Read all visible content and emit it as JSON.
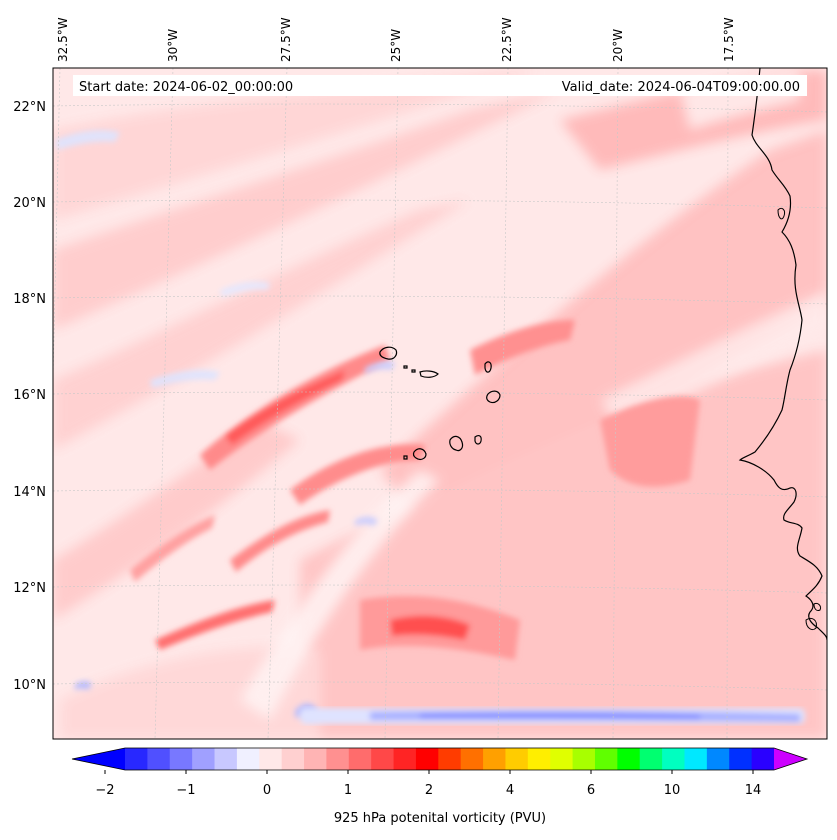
{
  "map": {
    "start_date_label": "Start date: 2024-06-02_00:00:00",
    "valid_date_label": "Valid_date: 2024-06-04T09:00:00.00",
    "top_longitude_labels": [
      "32.5°W",
      "30°W",
      "27.5°W",
      "25°W",
      "22.5°W",
      "20°W",
      "17.5°W"
    ],
    "left_latitude_labels": [
      "22°N",
      "20°N",
      "18°N",
      "16°N",
      "14°N",
      "12°N",
      "10°N"
    ],
    "projection": "Lambert conformal (tilted meridians)",
    "gridlines": true,
    "coastline_color": "#000000",
    "region": "Tropical eastern Atlantic with Cape Verde islands and West African coast (Senegal)"
  },
  "colorbar": {
    "label": "925 hPa potenital vorticity (PVU)",
    "tick_labels": [
      "−2",
      "−1",
      "0",
      "1",
      "2",
      "4",
      "6",
      "10",
      "14"
    ],
    "extend": "both",
    "min_color": "#0000ff",
    "max_color": "#cc00ff",
    "colors": [
      "#0000ff",
      "#2828ff",
      "#5050ff",
      "#7878ff",
      "#a0a0ff",
      "#c8c8ff",
      "#f0f0ff",
      "#ffe8e8",
      "#ffd0d0",
      "#ffb4b4",
      "#ff9090",
      "#ff6c6c",
      "#ff4848",
      "#ff2424",
      "#ff0000",
      "#ff3c00",
      "#ff7000",
      "#ffa000",
      "#ffcc00",
      "#ffee00",
      "#e0ff00",
      "#a8ff00",
      "#60ff00",
      "#00ff00",
      "#00ff70",
      "#00ffc0",
      "#00e8ff",
      "#0088ff",
      "#0030ff",
      "#2a00ff",
      "#8800ff"
    ]
  }
}
